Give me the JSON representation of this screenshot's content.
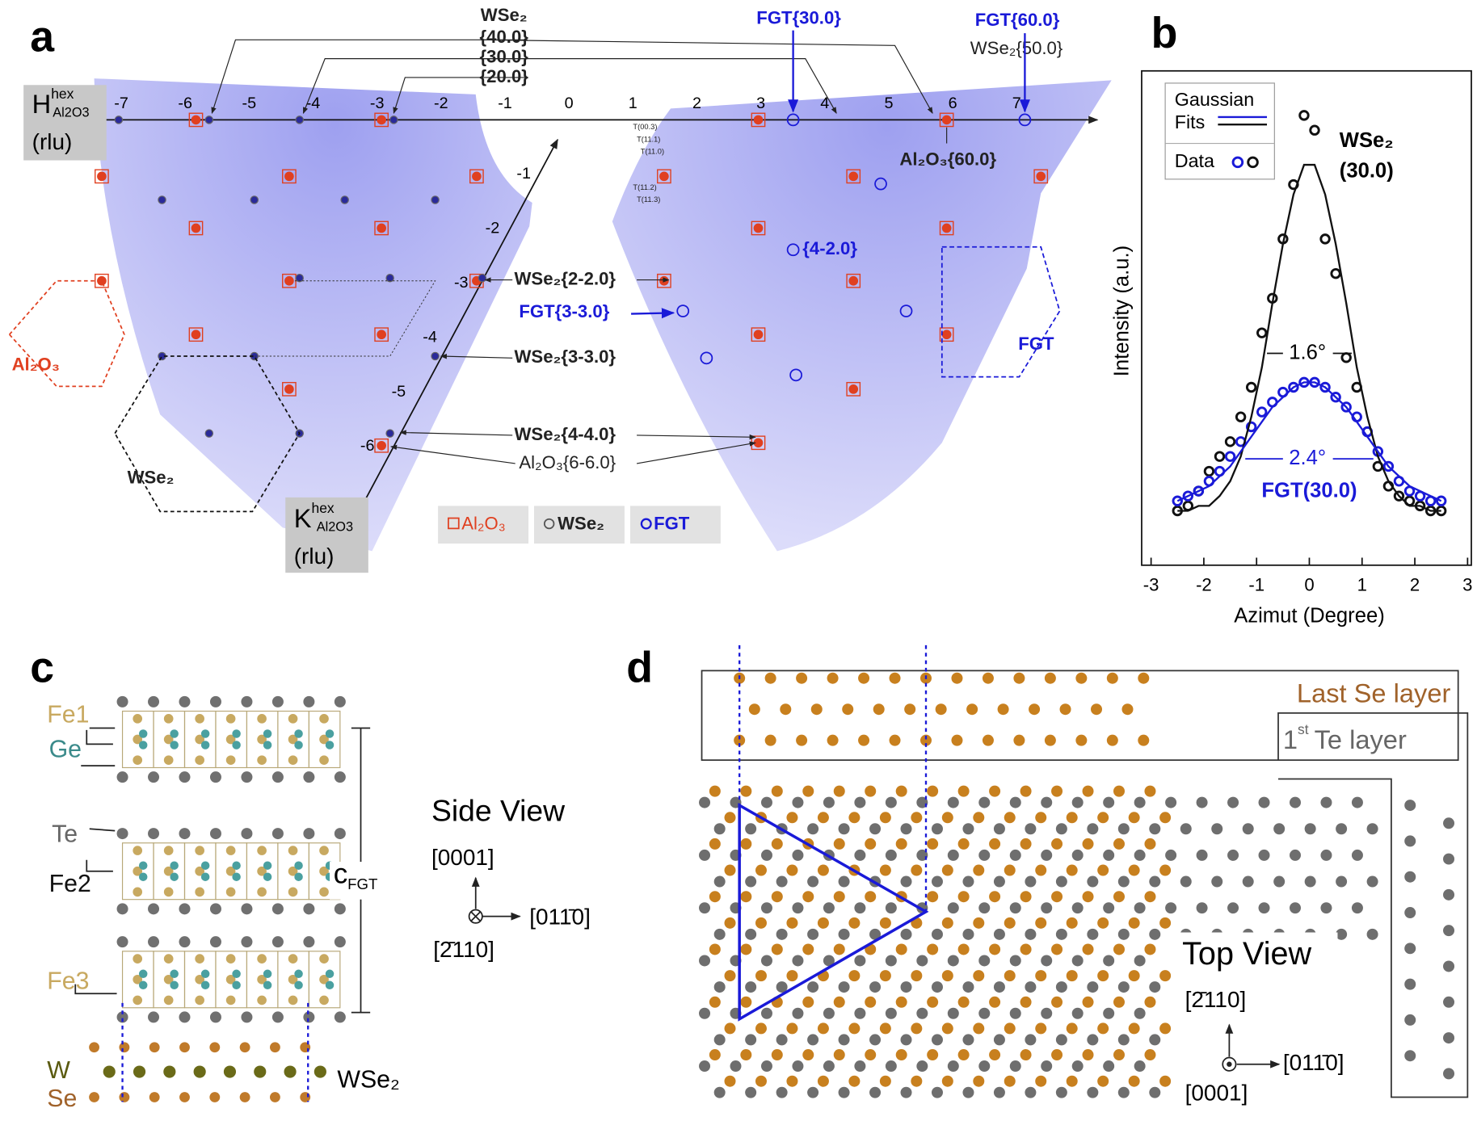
{
  "panel_a": {
    "letter": "a",
    "h_axis": {
      "symbol": "H",
      "sup": "hex",
      "sub": "Al2O3",
      "unit": "(rlu)",
      "ticks": [
        -7,
        -6,
        -5,
        -4,
        -3,
        -2,
        -1,
        0,
        1,
        2,
        3,
        4,
        5,
        6,
        7
      ]
    },
    "k_axis": {
      "symbol": "K",
      "sup": "hex",
      "sub": "Al2O3",
      "unit": "(rlu)",
      "ticks": [
        -1,
        -2,
        -3,
        -4,
        -5,
        -6
      ]
    },
    "labels": {
      "wse2_head": "WSe₂",
      "wse2_40": "{40.0}",
      "wse2_30": "{30.0}",
      "wse2_20": "{20.0}",
      "fgt_30": "FGT{30.0}",
      "fgt_60": "FGT{60.0}",
      "wse2_50": "WSe₂{50.0}",
      "al2o3_60": "Al₂O₃{60.0}",
      "fgt_4m2": "{4-2.0}",
      "wse2_2m2": "WSe₂{2-2.0}",
      "fgt_3m3": "FGT{3-3.0}",
      "wse2_3m3": "WSe₂{3-3.0}",
      "wse2_4m4": "WSe₂{4-4.0}",
      "al2o3_6m6": "Al₂O₃{6-6.0}",
      "al2o3_cell": "Al₂O₃",
      "wse2_cell": "WSe₂",
      "fgt_cell": "FGT"
    },
    "small_labels": [
      "T(00.3)",
      "T(11.1)",
      "T(11.0)",
      "T(11.2)",
      "T(11.3)"
    ],
    "legend": [
      "Al₂O₃",
      "WSe₂",
      "FGT"
    ]
  },
  "chart_data": {
    "type": "scatter",
    "panel": "b",
    "x_label": "Azimut (Degree)",
    "y_label": "Intensity (a.u.)",
    "xlim": [
      -3,
      3
    ],
    "xticks": [
      -3,
      -2,
      -1,
      0,
      1,
      2,
      3
    ],
    "ylim": [
      0,
      1
    ],
    "x": [
      -2.5,
      -2.3,
      -2.1,
      -1.9,
      -1.7,
      -1.5,
      -1.3,
      -1.1,
      -0.9,
      -0.7,
      -0.5,
      -0.3,
      -0.1,
      0.1,
      0.3,
      0.5,
      0.7,
      0.9,
      1.1,
      1.3,
      1.5,
      1.7,
      1.9,
      2.1,
      2.3,
      2.5
    ],
    "series": [
      {
        "style": "marker",
        "color": "#111111",
        "values": [
          0.11,
          0.12,
          0.15,
          0.19,
          0.22,
          0.25,
          0.3,
          0.36,
          0.47,
          0.54,
          0.66,
          0.77,
          0.91,
          0.88,
          0.66,
          0.59,
          0.42,
          0.36,
          0.27,
          0.2,
          0.16,
          0.14,
          0.13,
          0.12,
          0.11,
          0.11
        ]
      },
      {
        "style": "marker",
        "color": "#1a1ad8",
        "values": [
          0.13,
          0.14,
          0.15,
          0.17,
          0.19,
          0.22,
          0.25,
          0.28,
          0.31,
          0.33,
          0.35,
          0.36,
          0.37,
          0.37,
          0.36,
          0.34,
          0.32,
          0.3,
          0.27,
          0.23,
          0.2,
          0.17,
          0.15,
          0.14,
          0.13,
          0.13
        ]
      },
      {
        "style": "line",
        "color": "#111111",
        "values": [
          0.11,
          0.11,
          0.12,
          0.12,
          0.14,
          0.17,
          0.22,
          0.3,
          0.4,
          0.53,
          0.65,
          0.75,
          0.81,
          0.81,
          0.75,
          0.65,
          0.53,
          0.4,
          0.3,
          0.22,
          0.17,
          0.14,
          0.12,
          0.12,
          0.11,
          0.11
        ]
      },
      {
        "style": "line",
        "color": "#1a1ad8",
        "values": [
          0.13,
          0.14,
          0.15,
          0.16,
          0.18,
          0.2,
          0.23,
          0.26,
          0.29,
          0.32,
          0.34,
          0.36,
          0.37,
          0.37,
          0.36,
          0.34,
          0.32,
          0.29,
          0.26,
          0.23,
          0.2,
          0.18,
          0.16,
          0.15,
          0.14,
          0.13
        ]
      }
    ],
    "legend_line": [
      "Gaussian",
      "Fits"
    ],
    "legend_marker": "Data",
    "fwhm_labels": [
      "1.6°",
      "2.4°"
    ],
    "peak_labels": [
      "WSe₂",
      "(30.0)",
      "FGT(30.0)"
    ]
  },
  "panel_c": {
    "letter": "c",
    "atoms": [
      "Fe1",
      "Ge",
      "Te",
      "Fe2",
      "Fe3",
      "W",
      "Se"
    ],
    "c_symbol": "c",
    "c_sub": "FGT",
    "view": "Side View",
    "dir_up": "[0001]",
    "dir_right": "[011̄0]",
    "dir_in": "[2̄110]",
    "substrate": "WSe₂"
  },
  "panel_d": {
    "letter": "d",
    "last_se": "Last Se layer",
    "te_num": "1",
    "te_sup": "st",
    "te_rest": "Te layer",
    "view": "Top View",
    "dir_up": "[2̄110]",
    "dir_right": "[011̄0]",
    "dir_out": "[0001]"
  }
}
